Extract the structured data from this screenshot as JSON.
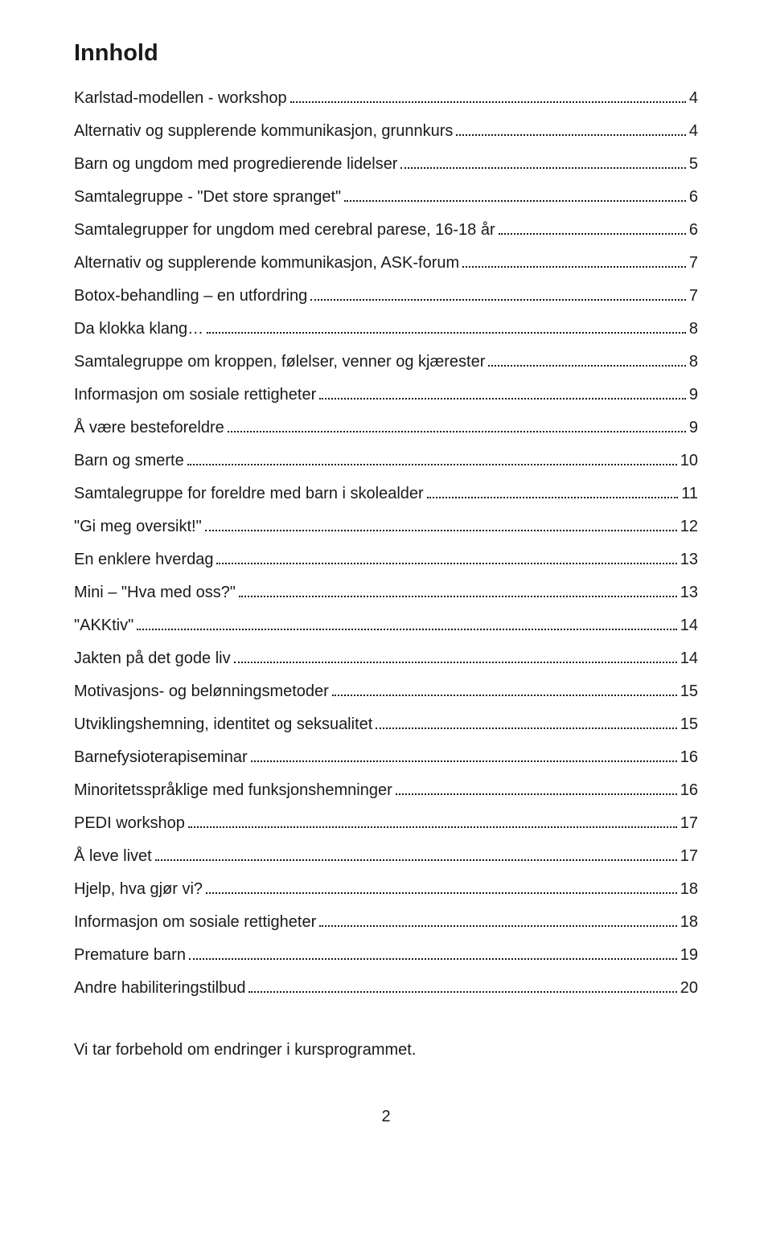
{
  "title": "Innhold",
  "entries": [
    {
      "label": "Karlstad-modellen - workshop",
      "page": "4"
    },
    {
      "label": "Alternativ og supplerende kommunikasjon, grunnkurs",
      "page": "4"
    },
    {
      "label": "Barn og ungdom med progredierende lidelser",
      "page": "5"
    },
    {
      "label": "Samtalegruppe - \"Det store spranget\"",
      "page": "6"
    },
    {
      "label": "Samtalegrupper for ungdom med cerebral parese, 16-18 år",
      "page": "6"
    },
    {
      "label": "Alternativ og supplerende kommunikasjon, ASK-forum",
      "page": "7"
    },
    {
      "label": "Botox-behandling – en utfordring",
      "page": "7"
    },
    {
      "label": "Da klokka klang…",
      "page": "8"
    },
    {
      "label": "Samtalegruppe om kroppen, følelser, venner og kjærester",
      "page": "8"
    },
    {
      "label": "Informasjon om sosiale rettigheter",
      "page": "9"
    },
    {
      "label": "Å være besteforeldre",
      "page": "9"
    },
    {
      "label": "Barn og smerte",
      "page": "10"
    },
    {
      "label": "Samtalegruppe for foreldre med barn  i skolealder",
      "page": "11"
    },
    {
      "label": "\"Gi meg oversikt!\"",
      "page": "12"
    },
    {
      "label": "En enklere hverdag",
      "page": "13"
    },
    {
      "label": "Mini – \"Hva med oss?\"",
      "page": "13"
    },
    {
      "label": "\"AKKtiv\"",
      "page": "14"
    },
    {
      "label": "Jakten på det gode liv",
      "page": "14"
    },
    {
      "label": "Motivasjons- og belønningsmetoder",
      "page": "15"
    },
    {
      "label": "Utviklingshemning, identitet og seksualitet",
      "page": "15"
    },
    {
      "label": "Barnefysioterapiseminar",
      "page": "16"
    },
    {
      "label": "Minoritetsspråklige med funksjonshemninger",
      "page": "16"
    },
    {
      "label": "PEDI workshop",
      "page": "17"
    },
    {
      "label": "Å leve livet",
      "page": "17"
    },
    {
      "label": "Hjelp, hva gjør vi?",
      "page": "18"
    },
    {
      "label": "Informasjon om sosiale rettigheter",
      "page": "18"
    },
    {
      "label": "Premature barn",
      "page": "19"
    },
    {
      "label": "Andre habiliteringstilbud",
      "page": "20"
    }
  ],
  "footer_note": "Vi tar forbehold om endringer i kursprogrammet.",
  "page_number": "2"
}
